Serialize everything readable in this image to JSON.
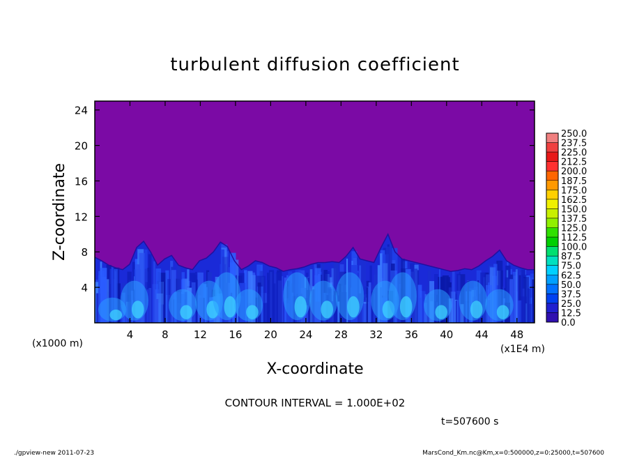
{
  "chart_data": {
    "type": "heatmap",
    "title": "turbulent diffusion coefficient",
    "xlabel": "X-coordinate",
    "ylabel": "Z-coordinate",
    "x_unit": "(x1000 m)",
    "x_multiplier": "(x1E4 m)",
    "xlim": [
      0,
      50
    ],
    "ylim": [
      0,
      25
    ],
    "x_ticks": [
      4,
      8,
      12,
      16,
      20,
      24,
      28,
      32,
      36,
      40,
      44,
      48
    ],
    "y_ticks": [
      4,
      8,
      12,
      16,
      20,
      24
    ],
    "contour_interval": "CONTOUR INTERVAL = 1.000E+02",
    "time_label": "t=507600 s",
    "colorbar": {
      "levels": [
        "250.0",
        "237.5",
        "225.0",
        "212.5",
        "200.0",
        "187.5",
        "175.0",
        "162.5",
        "150.0",
        "137.5",
        "125.0",
        "112.5",
        "100.0",
        "87.5",
        "75.0",
        "62.5",
        "50.0",
        "37.5",
        "25.0",
        "12.5",
        "0.0"
      ],
      "colors": [
        "#f08080",
        "#f04040",
        "#e81818",
        "#ff3030",
        "#ff6600",
        "#ff9900",
        "#ffd000",
        "#f0f000",
        "#c8f000",
        "#90f000",
        "#30e000",
        "#00d000",
        "#00e070",
        "#00e0c0",
        "#00d0ff",
        "#00a0ff",
        "#0070ff",
        "#0040f0",
        "#2020d0",
        "#3010b0"
      ]
    },
    "background_color": "#7b0aa5",
    "boundary_layer_top_km": [
      7.4,
      7.0,
      6.5,
      6.2,
      6.0,
      6.6,
      8.5,
      9.2,
      8.0,
      6.5,
      7.2,
      7.6,
      6.5,
      6.2,
      6.0,
      7.0,
      7.3,
      8.0,
      9.1,
      8.6,
      7.0,
      6.0,
      6.4,
      7.0,
      6.8,
      6.4,
      6.2,
      5.8,
      6.0,
      6.1,
      6.3,
      6.6,
      6.8,
      6.8,
      6.9,
      6.8,
      7.5,
      8.5,
      7.2,
      7.0,
      6.8,
      8.5,
      10.0,
      8.0,
      7.2,
      7.0,
      6.8,
      6.6,
      6.4,
      6.2,
      6.0,
      5.8,
      5.9,
      6.1,
      6.0,
      6.4,
      7.0,
      7.5,
      8.2,
      7.0,
      6.5,
      6.2,
      6.0,
      6.0
    ]
  },
  "footer": {
    "left": "./gpview-new  2011-07-23",
    "right": "MarsCond_Km.nc@Km,x=0:500000,z=0:25000,t=507600"
  }
}
